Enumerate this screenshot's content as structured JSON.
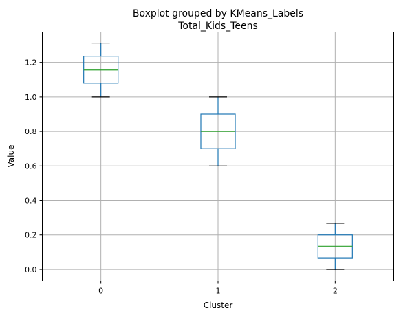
{
  "chart_data": {
    "type": "boxplot",
    "suptitle": "Boxplot grouped by KMeans_Labels",
    "title": "Total_Kids_Teens",
    "xlabel": "Cluster",
    "ylabel": "Value",
    "categories": [
      "0",
      "1",
      "2"
    ],
    "ylim": [
      -0.066,
      1.376
    ],
    "yticks": [
      0.0,
      0.2,
      0.4,
      0.6,
      0.8,
      1.0,
      1.2
    ],
    "ytick_labels": [
      "0.0",
      "0.2",
      "0.4",
      "0.6",
      "0.8",
      "1.0",
      "1.2"
    ],
    "grid": true,
    "boxes": [
      {
        "category": "0",
        "whisker_low": 1.0,
        "q1": 1.08,
        "median": 1.156,
        "q3": 1.236,
        "whisker_high": 1.312
      },
      {
        "category": "1",
        "whisker_low": 0.6,
        "q1": 0.7,
        "median": 0.8,
        "q3": 0.9,
        "whisker_high": 1.0
      },
      {
        "category": "2",
        "whisker_low": 0.0,
        "q1": 0.067,
        "median": 0.134,
        "q3": 0.2,
        "whisker_high": 0.267
      }
    ],
    "colors": {
      "box": "#1f77b4",
      "median": "#2ca02c",
      "whisker_cap": "#000000",
      "grid": "#b0b0b0"
    }
  }
}
